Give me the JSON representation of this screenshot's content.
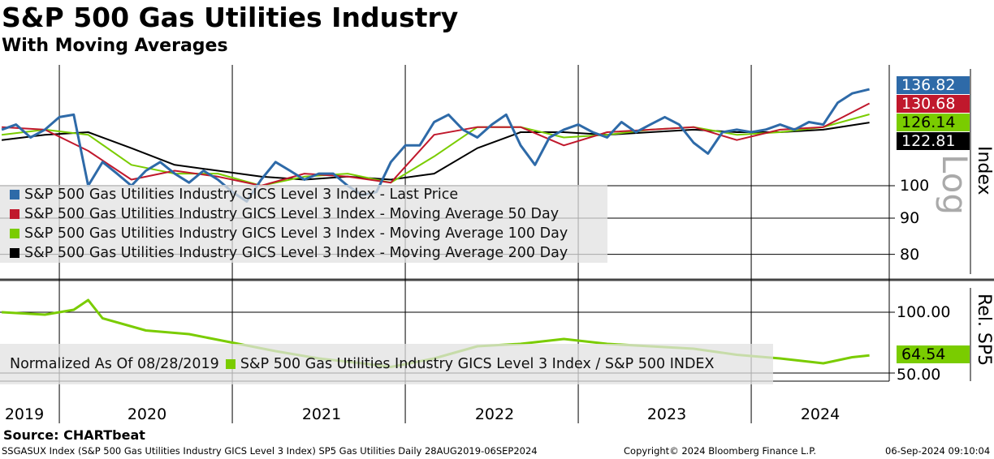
{
  "chart_data": [
    {
      "type": "line",
      "title": "S&P 500 Gas Utilities Industry",
      "subtitle": "With Moving Averages",
      "ylabel": "Index",
      "scale": "log",
      "scale_label": "Log",
      "yticks": [
        "100",
        "90",
        "80"
      ],
      "ylim": [
        75,
        140
      ],
      "x_labels": [
        "2019",
        "2020",
        "2021",
        "2022",
        "2023",
        "2024"
      ],
      "series": [
        {
          "name": "S&P 500 Gas Utilities Industry GICS Level 3 Index - Last Price",
          "color": "#2e6aa8",
          "last": "136.82",
          "x": [
            "2019-09",
            "2019-10",
            "2019-11",
            "2019-12",
            "2020-01",
            "2020-02",
            "2020-03",
            "2020-04",
            "2020-05",
            "2020-06",
            "2020-07",
            "2020-08",
            "2020-09",
            "2020-10",
            "2020-11",
            "2020-12",
            "2021-01",
            "2021-02",
            "2021-03",
            "2021-04",
            "2021-05",
            "2021-06",
            "2021-07",
            "2021-08",
            "2021-09",
            "2021-10",
            "2021-11",
            "2021-12",
            "2022-01",
            "2022-02",
            "2022-03",
            "2022-04",
            "2022-05",
            "2022-06",
            "2022-07",
            "2022-08",
            "2022-09",
            "2022-10",
            "2022-11",
            "2022-12",
            "2023-01",
            "2023-02",
            "2023-03",
            "2023-04",
            "2023-05",
            "2023-06",
            "2023-07",
            "2023-08",
            "2023-09",
            "2023-10",
            "2023-11",
            "2023-12",
            "2024-01",
            "2024-02",
            "2024-03",
            "2024-04",
            "2024-05",
            "2024-06",
            "2024-07",
            "2024-08",
            "2024-09.2"
          ],
          "values": [
            120,
            122,
            117,
            120,
            125,
            126,
            100,
            108,
            104,
            100,
            105,
            108,
            104,
            101,
            105,
            102,
            98,
            95,
            102,
            108,
            105,
            102,
            104,
            104,
            100,
            97,
            98,
            108,
            114,
            114,
            123,
            126,
            120,
            117,
            122,
            126,
            114,
            107,
            117,
            120,
            122,
            119,
            117,
            123,
            119,
            122,
            125,
            122,
            115,
            111,
            119,
            120,
            119,
            120,
            122,
            120,
            123,
            122,
            131,
            135,
            136.82
          ]
        },
        {
          "name": "S&P 500 Gas Utilities Industry GICS Level 3 Index - Moving Average 50 Day",
          "color": "#c0182c",
          "last": "130.68",
          "x": [
            "2019-09",
            "2019-12",
            "2020-03",
            "2020-06",
            "2020-09",
            "2020-12",
            "2021-03",
            "2021-06",
            "2021-09",
            "2021-12",
            "2022-03",
            "2022-06",
            "2022-09",
            "2022-12",
            "2023-03",
            "2023-06",
            "2023-09",
            "2023-12",
            "2024-03",
            "2024-06",
            "2024-09.2"
          ],
          "values": [
            121,
            120,
            112,
            102,
            105,
            103,
            100,
            104,
            103,
            101,
            118,
            121,
            121,
            114,
            119,
            120,
            121,
            116,
            120,
            121,
            130.68
          ]
        },
        {
          "name": "S&P 500 Gas Utilities Industry GICS Level 3 Index - Moving Average 100 Day",
          "color": "#7acc00",
          "last": "126.14",
          "x": [
            "2019-09",
            "2019-12",
            "2020-03",
            "2020-06",
            "2020-09",
            "2020-12",
            "2021-03",
            "2021-06",
            "2021-09",
            "2021-12",
            "2022-03",
            "2022-06",
            "2022-09",
            "2022-12",
            "2023-03",
            "2023-06",
            "2023-09",
            "2023-12",
            "2024-03",
            "2024-06",
            "2024-09.2"
          ],
          "values": [
            118,
            120,
            118,
            107,
            104,
            104,
            100,
            103,
            104,
            101,
            110,
            121,
            121,
            117,
            118,
            120,
            121,
            118,
            119,
            121,
            126.14
          ]
        },
        {
          "name": "S&P 500 Gas Utilities Industry GICS Level 3 Index - Moving Average 200 Day",
          "color": "#000000",
          "last": "122.81",
          "x": [
            "2019-09",
            "2019-12",
            "2020-03",
            "2020-06",
            "2020-09",
            "2020-12",
            "2021-03",
            "2021-06",
            "2021-09",
            "2021-12",
            "2022-03",
            "2022-06",
            "2022-09",
            "2022-12",
            "2023-03",
            "2023-06",
            "2023-09",
            "2023-12",
            "2024-03",
            "2024-06",
            "2024-09.2"
          ],
          "values": [
            116,
            118,
            119,
            113,
            107,
            105,
            103,
            102,
            103,
            102,
            104,
            113,
            119,
            119,
            118,
            119,
            120,
            119,
            119,
            120,
            122.81
          ]
        }
      ]
    },
    {
      "type": "line",
      "ylabel": "Rel. SP5",
      "yticks": [
        "100.00",
        "50.00"
      ],
      "ylim": [
        45,
        115
      ],
      "series": [
        {
          "name": "S&P 500 Gas Utilities Industry GICS Level 3 Index / S&P 500 INDEX",
          "color": "#7acc00",
          "last": "64.54",
          "x": [
            "2019-09",
            "2019-12",
            "2020-02",
            "2020-03",
            "2020-04",
            "2020-07",
            "2020-10",
            "2021-01",
            "2021-04",
            "2021-07",
            "2021-10",
            "2021-12",
            "2022-03",
            "2022-06",
            "2022-09",
            "2022-12",
            "2023-03",
            "2023-06",
            "2023-09",
            "2023-12",
            "2024-03",
            "2024-06",
            "2024-08",
            "2024-09.2"
          ],
          "values": [
            100,
            98,
            102,
            110,
            95,
            85,
            82,
            75,
            68,
            62,
            58,
            55,
            62,
            72,
            74,
            78,
            74,
            72,
            70,
            65,
            62,
            58,
            63,
            64.54
          ]
        }
      ],
      "note": "Normalized As Of 08/28/2019"
    }
  ],
  "footer": {
    "source": "Source: CHARTbeat",
    "desc": "SSGASUX Index (S&P 500 Gas Utilities Industry GICS Level 3 Index) SP5 Gas Utilities  Daily 28AUG2019-06SEP2024",
    "copyright": "Copyright© 2024 Bloomberg Finance L.P.",
    "timestamp": "06-Sep-2024 09:10:04"
  }
}
